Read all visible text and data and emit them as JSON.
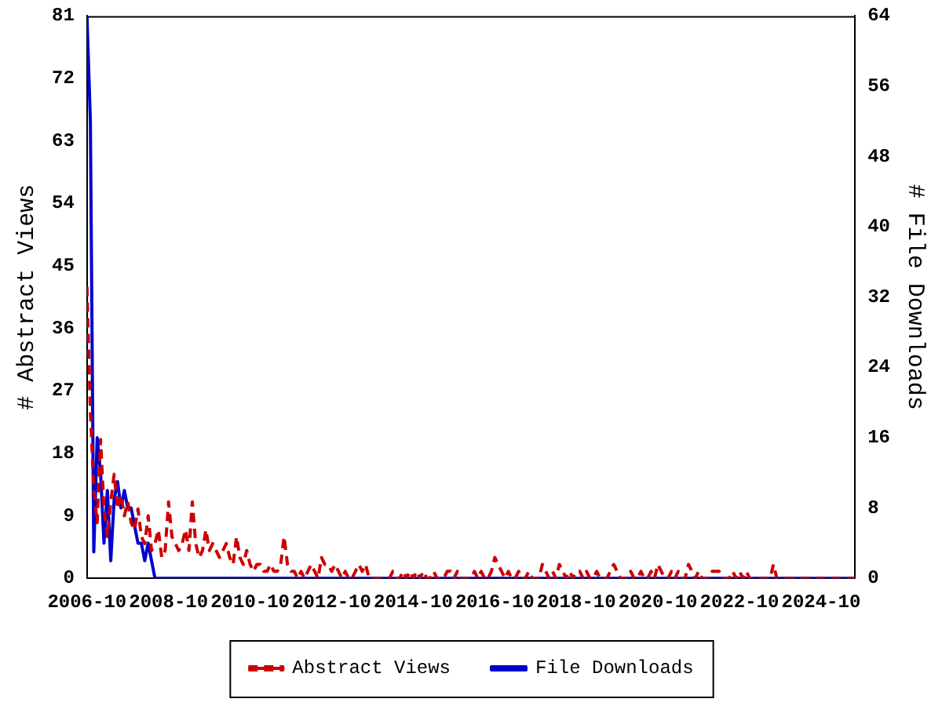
{
  "chart_data": {
    "type": "line",
    "ylabel": "# Abstract Views",
    "y2label": "# File Downloads",
    "x": [
      "2006-10",
      "2006-11",
      "2006-12",
      "2007-01",
      "2007-02",
      "2007-03",
      "2007-04",
      "2007-05",
      "2007-06",
      "2007-07",
      "2007-08",
      "2007-09",
      "2007-10",
      "2007-11",
      "2007-12",
      "2008-01",
      "2008-02",
      "2008-03",
      "2008-04",
      "2008-05",
      "2008-06",
      "2008-07",
      "2008-08",
      "2008-09",
      "2008-10",
      "2008-11",
      "2008-12",
      "2009-01",
      "2009-02",
      "2009-03",
      "2009-04",
      "2009-05",
      "2009-06",
      "2009-07",
      "2009-08",
      "2009-09",
      "2009-10",
      "2009-11",
      "2009-12",
      "2010-01",
      "2010-02",
      "2010-03",
      "2010-04",
      "2010-05",
      "2010-06",
      "2010-07",
      "2010-08",
      "2010-09",
      "2010-10",
      "2010-11",
      "2010-12",
      "2011-01",
      "2011-02",
      "2011-03",
      "2011-04",
      "2011-05",
      "2011-06",
      "2011-07",
      "2011-08",
      "2011-09",
      "2011-10",
      "2011-11",
      "2011-12",
      "2012-01",
      "2012-02",
      "2012-03",
      "2012-04",
      "2012-05",
      "2012-06",
      "2012-07",
      "2012-08",
      "2012-09",
      "2012-10",
      "2012-11",
      "2012-12",
      "2013-01",
      "2013-02",
      "2013-03",
      "2013-04",
      "2013-05",
      "2013-06",
      "2013-07",
      "2013-08",
      "2013-09",
      "2013-10",
      "2013-11",
      "2013-12",
      "2014-01",
      "2014-02",
      "2014-03",
      "2014-04",
      "2014-05",
      "2014-06",
      "2014-07",
      "2014-08",
      "2014-09",
      "2014-10",
      "2014-11",
      "2014-12",
      "2015-01",
      "2015-02",
      "2015-03",
      "2015-04",
      "2015-05",
      "2015-06",
      "2015-07",
      "2015-08",
      "2015-09",
      "2015-10",
      "2015-11",
      "2015-12",
      "2016-01",
      "2016-02",
      "2016-03",
      "2016-04",
      "2016-05",
      "2016-06",
      "2016-07",
      "2016-08",
      "2016-09",
      "2016-10",
      "2016-11",
      "2016-12",
      "2017-01",
      "2017-02",
      "2017-03",
      "2017-04",
      "2017-05",
      "2017-06",
      "2017-07",
      "2017-08",
      "2017-09",
      "2017-10",
      "2017-11",
      "2017-12",
      "2018-01",
      "2018-02",
      "2018-03",
      "2018-04",
      "2018-05",
      "2018-06",
      "2018-07",
      "2018-08",
      "2018-09",
      "2018-10",
      "2018-11",
      "2018-12",
      "2019-01",
      "2019-02",
      "2019-03",
      "2019-04",
      "2019-05",
      "2019-06",
      "2019-07",
      "2019-08",
      "2019-09",
      "2019-10",
      "2019-11",
      "2019-12",
      "2020-01",
      "2020-02",
      "2020-03",
      "2020-04",
      "2020-05",
      "2020-06",
      "2020-07",
      "2020-08",
      "2020-09",
      "2020-10",
      "2020-11",
      "2020-12",
      "2021-01",
      "2021-02",
      "2021-03",
      "2021-04",
      "2021-05",
      "2021-06",
      "2021-07",
      "2021-08",
      "2021-09",
      "2021-10",
      "2021-11",
      "2021-12",
      "2022-01",
      "2022-02",
      "2022-03",
      "2022-04",
      "2022-05",
      "2022-06",
      "2022-07",
      "2022-08",
      "2022-09",
      "2022-10",
      "2022-11",
      "2022-12",
      "2023-01",
      "2023-02",
      "2023-03",
      "2023-04",
      "2023-05",
      "2023-06",
      "2023-07",
      "2023-08",
      "2023-09",
      "2023-10",
      "2023-11",
      "2023-12",
      "2024-01",
      "2024-02",
      "2024-03",
      "2024-04",
      "2024-05",
      "2024-06",
      "2024-07",
      "2024-08",
      "2024-09",
      "2024-10",
      "2024-11",
      "2024-12",
      "2025-01",
      "2025-02",
      "2025-03",
      "2025-04",
      "2025-05",
      "2025-06",
      "2025-07",
      "2025-08"
    ],
    "xlim": [
      "2006-10",
      "2025-08"
    ],
    "xticks": [
      "2006-10",
      "2008-10",
      "2010-10",
      "2012-10",
      "2014-10",
      "2016-10",
      "2018-10",
      "2020-10",
      "2022-10",
      "2024-10"
    ],
    "ylim": [
      0,
      81
    ],
    "yticks": [
      0,
      9,
      18,
      27,
      36,
      45,
      54,
      63,
      72,
      81
    ],
    "y2lim": [
      0,
      64
    ],
    "y2ticks": [
      0,
      8,
      16,
      24,
      32,
      40,
      48,
      56,
      64
    ],
    "legend": "bottom",
    "grid": false,
    "series": [
      {
        "name": "Abstract Views",
        "color": "#cc0000",
        "line_style": "dashed",
        "values": [
          42,
          24,
          13,
          8,
          20,
          10,
          6,
          11,
          15,
          10,
          12,
          9,
          11,
          8,
          7,
          10,
          6,
          5,
          9,
          4,
          5,
          7,
          3,
          4,
          11,
          6,
          5,
          4,
          5,
          7,
          4,
          11,
          5,
          3,
          4,
          7,
          4,
          5,
          4,
          3,
          4,
          5,
          3,
          2,
          6,
          3,
          2,
          4,
          2,
          1,
          2,
          2,
          1,
          1,
          2,
          1,
          1,
          2,
          6,
          2,
          1,
          1,
          0,
          1,
          0,
          1,
          2,
          1,
          0,
          3,
          2,
          2,
          1,
          2,
          1,
          0,
          1,
          0,
          0,
          1,
          2,
          1,
          2,
          0,
          0,
          0,
          0,
          0,
          0,
          0,
          1,
          0,
          0,
          1,
          0,
          1,
          0,
          1,
          0,
          1,
          0,
          0,
          1,
          0,
          0,
          0,
          1,
          1,
          0,
          1,
          0,
          0,
          0,
          0,
          1,
          0,
          1,
          0,
          0,
          1,
          3,
          2,
          1,
          0,
          1,
          0,
          0,
          1,
          0,
          0,
          1,
          0,
          0,
          0,
          2,
          1,
          0,
          1,
          0,
          2,
          1,
          0,
          1,
          0,
          1,
          1,
          0,
          1,
          0,
          0,
          1,
          0,
          0,
          0,
          1,
          2,
          1,
          0,
          0,
          0,
          1,
          0,
          0,
          1,
          0,
          0,
          1,
          0,
          2,
          1,
          0,
          0,
          1,
          0,
          1,
          0,
          0,
          2,
          1,
          0,
          1,
          0,
          0,
          0,
          1,
          1,
          1,
          0,
          0,
          0,
          1,
          0,
          1,
          0,
          1,
          0,
          0,
          0,
          0,
          0,
          0,
          0,
          2,
          0,
          0,
          0,
          0,
          0,
          0,
          0,
          0,
          0,
          0,
          0,
          0,
          0,
          0,
          0,
          0,
          0,
          0,
          0,
          0,
          0,
          0,
          0,
          0
        ]
      },
      {
        "name": "File Downloads",
        "color": "#0000cc",
        "line_style": "solid",
        "axis": "y2",
        "values": [
          64,
          52,
          3,
          16,
          12,
          4,
          10,
          2,
          9,
          11,
          8,
          10,
          8,
          8,
          6,
          4,
          4,
          2,
          4,
          2,
          0,
          0,
          0,
          0,
          0,
          0,
          0,
          0,
          0,
          0,
          0,
          0,
          0,
          0,
          0,
          0,
          0,
          0,
          0,
          0,
          0,
          0,
          0,
          0,
          0,
          0,
          0,
          0,
          0,
          0,
          0,
          0,
          0,
          0,
          0,
          0,
          0,
          0,
          0,
          0,
          0,
          0,
          0,
          0,
          0,
          0,
          0,
          0,
          0,
          0,
          0,
          0,
          0,
          0,
          0,
          0,
          0,
          0,
          0,
          0,
          0,
          0,
          0,
          0,
          0,
          0,
          0,
          0,
          0,
          0,
          0,
          0,
          0,
          0,
          0,
          0,
          0,
          0,
          0,
          0,
          0,
          0,
          0,
          0,
          0,
          0,
          0,
          0,
          0,
          0,
          0,
          0,
          0,
          0,
          0,
          0,
          0,
          0,
          0,
          0,
          0,
          0,
          0,
          0,
          0,
          0,
          0,
          0,
          0,
          0,
          0,
          0,
          0,
          0,
          0,
          0,
          0,
          0,
          0,
          0,
          0,
          0,
          0,
          0,
          0,
          0,
          0,
          0,
          0,
          0,
          0,
          0,
          0,
          0,
          0,
          0,
          0,
          0,
          0,
          0,
          0,
          0,
          0,
          0,
          0,
          0,
          0,
          0,
          0,
          0,
          0,
          0,
          0,
          0,
          0,
          0,
          0,
          0,
          0,
          0,
          0,
          0,
          0,
          0,
          0,
          0,
          0,
          0,
          0,
          0,
          0,
          0,
          0,
          0,
          0,
          0,
          0,
          0,
          0,
          0,
          0,
          0,
          0,
          0,
          0,
          0,
          0,
          0,
          0,
          0,
          0,
          0,
          0,
          0,
          0,
          0,
          0,
          0,
          0,
          0,
          0,
          0,
          0,
          0,
          0,
          0,
          0
        ]
      }
    ]
  }
}
